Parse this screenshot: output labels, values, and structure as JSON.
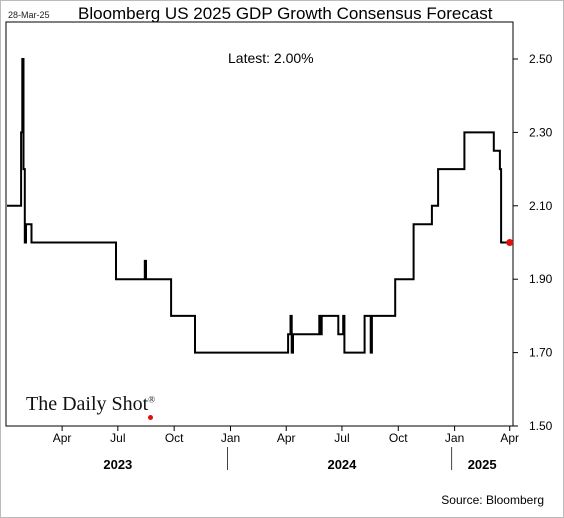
{
  "header": {
    "date_stamp": "28-Mar-25",
    "title": "Bloomberg US 2025 GDP Growth Consensus Forecast"
  },
  "annotation": {
    "latest_label": "Latest:  2.00%"
  },
  "footer": {
    "source": "Source: Bloomberg",
    "logo_text": "The Daily Shot",
    "logo_mark": "®"
  },
  "colors": {
    "line": "#000000",
    "latest_marker": "#e01010",
    "frame": "#000000"
  },
  "chart_data": {
    "type": "line",
    "title": "Bloomberg US 2025 GDP Growth Consensus Forecast",
    "xlabel": "",
    "ylabel": "",
    "ylim": [
      1.5,
      2.5
    ],
    "yticks": [
      "1.50",
      "1.70",
      "1.90",
      "2.10",
      "2.30",
      "2.50"
    ],
    "xlim": [
      "2023-01-01",
      "2025-04-08"
    ],
    "xticks": [
      {
        "date": "2023-04-01",
        "label": "Apr"
      },
      {
        "date": "2023-07-01",
        "label": "Jul"
      },
      {
        "date": "2023-10-01",
        "label": "Oct"
      },
      {
        "date": "2024-01-01",
        "label": "Jan"
      },
      {
        "date": "2024-04-01",
        "label": "Apr"
      },
      {
        "date": "2024-07-01",
        "label": "Jul"
      },
      {
        "date": "2024-10-01",
        "label": "Oct"
      },
      {
        "date": "2025-01-01",
        "label": "Jan"
      },
      {
        "date": "2025-04-01",
        "label": "Apr"
      }
    ],
    "years": [
      {
        "label": "2023",
        "center": "2023-07-01"
      },
      {
        "label": "2024",
        "center": "2024-07-01"
      },
      {
        "label": "2025",
        "center": "2025-02-15"
      }
    ],
    "year_separators": [
      "2024-01-01",
      "2025-01-01"
    ],
    "grid": false,
    "series": [
      {
        "x": [
          "2023-01-01",
          "2023-01-24",
          "2023-01-24",
          "2023-01-26",
          "2023-01-26",
          "2023-01-28",
          "2023-01-28",
          "2023-01-30",
          "2023-01-30",
          "2023-02-01",
          "2023-02-01",
          "2023-02-10",
          "2023-02-10",
          "2023-02-12",
          "2023-02-12",
          "2023-06-28",
          "2023-06-28",
          "2023-08-14",
          "2023-08-14",
          "2023-08-16",
          "2023-08-16",
          "2023-09-26",
          "2023-09-26",
          "2023-11-04",
          "2023-11-04",
          "2024-04-04",
          "2024-04-04",
          "2024-04-08",
          "2024-04-08",
          "2024-04-10",
          "2024-04-10",
          "2024-04-12",
          "2024-04-12",
          "2024-05-25",
          "2024-05-25",
          "2024-05-27",
          "2024-05-27",
          "2024-05-29",
          "2024-05-29",
          "2024-06-25",
          "2024-06-25",
          "2024-07-03",
          "2024-07-03",
          "2024-07-05",
          "2024-07-05",
          "2024-08-07",
          "2024-08-07",
          "2024-08-17",
          "2024-08-17",
          "2024-08-19",
          "2024-08-19",
          "2024-08-21",
          "2024-08-21",
          "2024-09-26",
          "2024-09-26",
          "2024-10-26",
          "2024-10-26",
          "2024-11-25",
          "2024-11-25",
          "2024-12-01",
          "2024-12-01",
          "2024-12-05",
          "2024-12-05",
          "2025-01-17",
          "2025-01-17",
          "2025-03-06",
          "2025-03-06",
          "2025-03-16",
          "2025-03-16",
          "2025-03-18",
          "2025-03-18",
          "2025-03-28",
          "2025-03-28",
          "2025-04-01"
        ],
        "values": [
          2.1,
          2.1,
          2.3,
          2.3,
          2.5,
          2.5,
          2.2,
          2.2,
          2.0,
          2.0,
          2.05,
          2.05,
          2.0,
          2.0,
          2.0,
          2.0,
          1.9,
          1.9,
          1.95,
          1.95,
          1.9,
          1.9,
          1.8,
          1.8,
          1.7,
          1.7,
          1.75,
          1.75,
          1.8,
          1.8,
          1.7,
          1.7,
          1.75,
          1.75,
          1.8,
          1.8,
          1.75,
          1.75,
          1.8,
          1.8,
          1.75,
          1.75,
          1.8,
          1.8,
          1.7,
          1.7,
          1.8,
          1.8,
          1.7,
          1.7,
          1.8,
          1.8,
          1.8,
          1.8,
          1.9,
          1.9,
          2.05,
          2.05,
          2.1,
          2.1,
          2.1,
          2.1,
          2.2,
          2.2,
          2.3,
          2.3,
          2.25,
          2.25,
          2.2,
          2.2,
          2.0,
          2.0,
          2.0,
          2.0
        ]
      }
    ],
    "latest": {
      "date": "2025-04-01",
      "value": 2.0
    }
  }
}
